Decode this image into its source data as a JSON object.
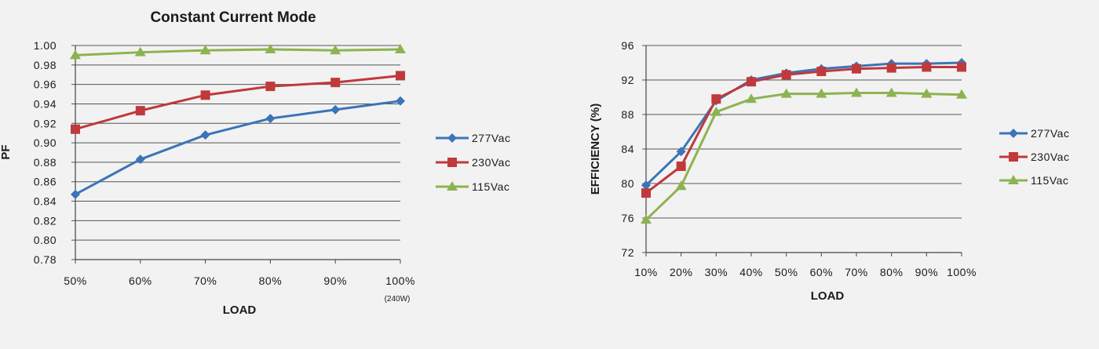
{
  "chart_data": [
    {
      "type": "line",
      "title": "Constant Current Mode",
      "xlabel": "LOAD",
      "ylabel": "PF",
      "categories": [
        "50%",
        "60%",
        "70%",
        "80%",
        "90%",
        "100%"
      ],
      "category_note": "(240W)",
      "ylim": [
        0.78,
        1.0
      ],
      "yticks": [
        "0.78",
        "0.80",
        "0.82",
        "0.84",
        "0.86",
        "0.88",
        "0.90",
        "0.92",
        "0.94",
        "0.96",
        "0.98",
        "1.00"
      ],
      "grid": true,
      "legend_position": "right",
      "series": [
        {
          "name": "277Vac",
          "color": "#3b74b8",
          "marker": "diamond",
          "values": [
            0.847,
            0.883,
            0.908,
            0.925,
            0.934,
            0.943
          ]
        },
        {
          "name": "230Vac",
          "color": "#c0393b",
          "marker": "square",
          "values": [
            0.914,
            0.933,
            0.949,
            0.958,
            0.962,
            0.969
          ]
        },
        {
          "name": "115Vac",
          "color": "#8db350",
          "marker": "triangle",
          "values": [
            0.99,
            0.993,
            0.995,
            0.996,
            0.995,
            0.996
          ]
        }
      ]
    },
    {
      "type": "line",
      "title": "",
      "xlabel": "LOAD",
      "ylabel": "EFFICIENCY (%)",
      "categories": [
        "10%",
        "20%",
        "30%",
        "40%",
        "50%",
        "60%",
        "70%",
        "80%",
        "90%",
        "100%"
      ],
      "ylim": [
        72,
        96
      ],
      "yticks": [
        "72",
        "76",
        "80",
        "84",
        "88",
        "92",
        "96"
      ],
      "grid": true,
      "legend_position": "right",
      "series": [
        {
          "name": "277Vac",
          "color": "#3b74b8",
          "marker": "diamond",
          "values": [
            79.8,
            83.7,
            89.6,
            92.0,
            92.8,
            93.3,
            93.6,
            93.9,
            93.9,
            94.0
          ]
        },
        {
          "name": "230Vac",
          "color": "#c0393b",
          "marker": "square",
          "values": [
            78.9,
            82.0,
            89.8,
            91.8,
            92.6,
            93.0,
            93.3,
            93.4,
            93.5,
            93.5
          ]
        },
        {
          "name": "115Vac",
          "color": "#8db350",
          "marker": "triangle",
          "values": [
            75.8,
            79.7,
            88.3,
            89.8,
            90.4,
            90.4,
            90.5,
            90.5,
            90.4,
            90.3
          ]
        }
      ]
    }
  ]
}
